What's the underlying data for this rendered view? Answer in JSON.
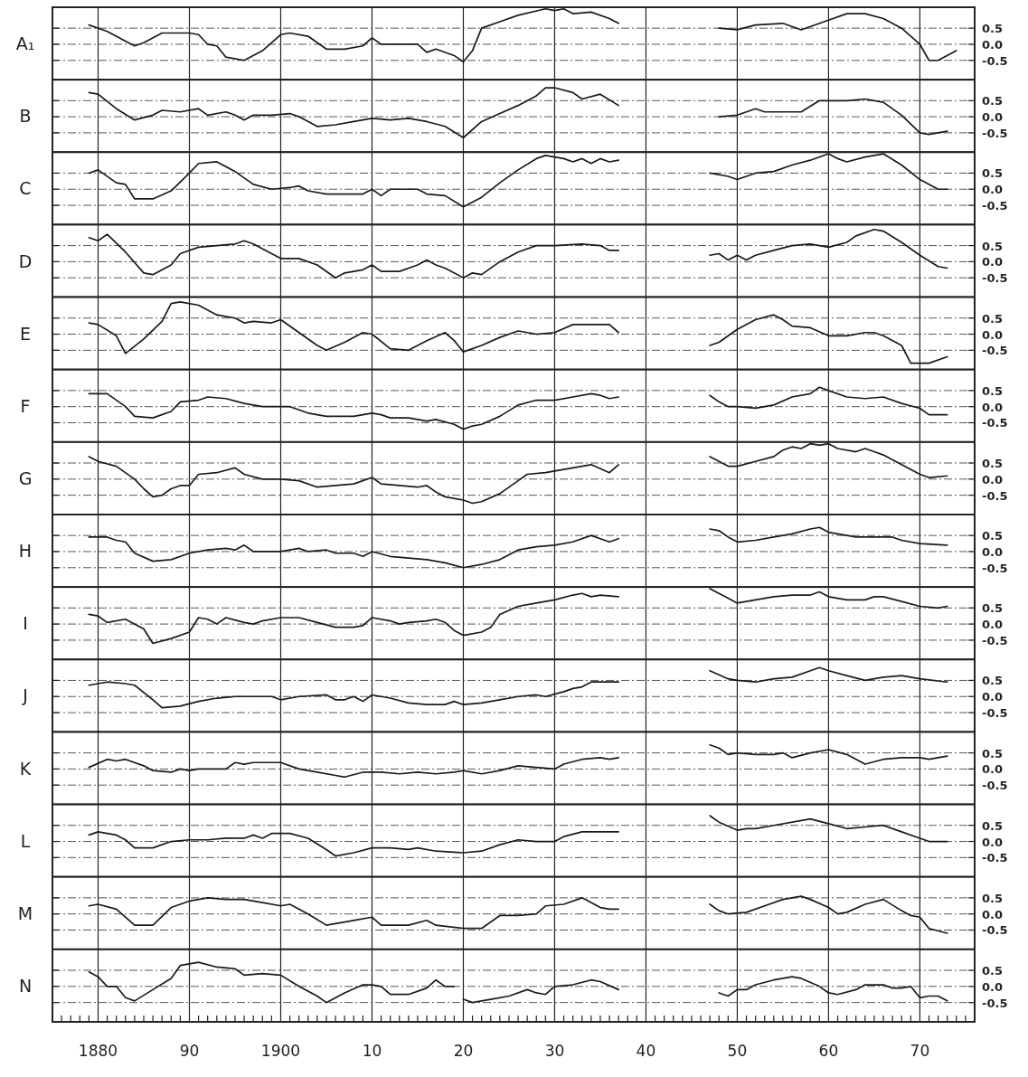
{
  "chart_data": [
    {
      "type": "line",
      "ylabel": "A₁",
      "color": "#1a1a1a",
      "xlim": [
        1875,
        1976
      ],
      "ylim": [
        -1.1,
        1.15
      ],
      "grid": true,
      "tick_labels": "y",
      "xticks": [
        1880,
        1890,
        1900,
        1910,
        1920,
        1930,
        1940,
        1950,
        1960,
        1970
      ],
      "yticks": [
        {
          "value": 0.5,
          "label": "0.5"
        },
        {
          "value": 0,
          "label": "0.0"
        },
        {
          "value": -0.5,
          "label": "-0.5"
        }
      ],
      "x": [
        1879,
        1881,
        1883,
        1884,
        1885,
        1887,
        1890,
        1891,
        1892,
        1893,
        1894,
        1896,
        1898,
        1900,
        1901,
        1903,
        1905,
        1907,
        1909,
        1910,
        1911,
        1913,
        1915,
        1916,
        1917,
        1919,
        1920,
        1921,
        1922,
        1924,
        1926,
        1929,
        1930,
        1931,
        1932,
        1934,
        1936,
        1937,
        1942,
        1948,
        1950,
        1952,
        1955,
        1957,
        1960,
        1962,
        1964,
        1966,
        1968,
        1970,
        1971,
        1972,
        1974
      ],
      "values": [
        0.6,
        0.4,
        0.1,
        -0.05,
        0.05,
        0.35,
        0.35,
        0.3,
        0,
        -0.05,
        -0.4,
        -0.5,
        -0.2,
        0.3,
        0.35,
        0.25,
        -0.15,
        -0.15,
        -0.05,
        0.2,
        0,
        0,
        0,
        -0.25,
        -0.15,
        -0.35,
        -0.55,
        -0.2,
        0.5,
        0.7,
        0.9,
        1.1,
        1.05,
        1.1,
        0.95,
        1.0,
        0.8,
        0.65,
        null,
        0.5,
        0.45,
        0.6,
        0.65,
        0.45,
        0.75,
        0.95,
        0.95,
        0.8,
        0.5,
        0,
        -0.5,
        -0.5,
        -0.2
      ]
    },
    {
      "type": "line",
      "ylabel": "B",
      "color": "#1a1a1a",
      "xlim": [
        1875,
        1976
      ],
      "ylim": [
        -1.1,
        1.15
      ],
      "grid": true,
      "tick_labels": "y",
      "xticks": [
        1880,
        1890,
        1900,
        1910,
        1920,
        1930,
        1940,
        1950,
        1960,
        1970
      ],
      "yticks": [
        {
          "value": 0.5,
          "label": "0.5"
        },
        {
          "value": 0,
          "label": "0.0"
        },
        {
          "value": -0.5,
          "label": "-0.5"
        }
      ],
      "x": [
        1879,
        1880,
        1882,
        1884,
        1886,
        1887,
        1889,
        1891,
        1892,
        1894,
        1895,
        1896,
        1897,
        1899,
        1901,
        1902,
        1904,
        1906,
        1908,
        1910,
        1912,
        1914,
        1916,
        1918,
        1920,
        1922,
        1924,
        1926,
        1928,
        1929,
        1930,
        1932,
        1933,
        1935,
        1937,
        1942,
        1948,
        1950,
        1952,
        1953,
        1957,
        1959,
        1962,
        1964,
        1966,
        1968,
        1970,
        1971,
        1973
      ],
      "values": [
        0.75,
        0.7,
        0.25,
        -0.1,
        0.05,
        0.2,
        0.15,
        0.25,
        0.05,
        0.15,
        0.05,
        -0.1,
        0.05,
        0.05,
        0.1,
        0,
        -0.3,
        -0.25,
        -0.15,
        -0.05,
        -0.1,
        -0.05,
        -0.15,
        -0.3,
        -0.65,
        -0.15,
        0.1,
        0.35,
        0.65,
        0.9,
        0.9,
        0.75,
        0.55,
        0.7,
        0.35,
        null,
        0,
        0.05,
        0.25,
        0.15,
        0.15,
        0.5,
        0.5,
        0.55,
        0.45,
        0.05,
        -0.5,
        -0.55,
        -0.45
      ]
    },
    {
      "type": "line",
      "ylabel": "C",
      "color": "#1a1a1a",
      "xlim": [
        1875,
        1976
      ],
      "ylim": [
        -1.1,
        1.15
      ],
      "grid": true,
      "tick_labels": "y",
      "xticks": [
        1880,
        1890,
        1900,
        1910,
        1920,
        1930,
        1940,
        1950,
        1960,
        1970
      ],
      "yticks": [
        {
          "value": 0.5,
          "label": "0.5"
        },
        {
          "value": 0,
          "label": "0.0"
        },
        {
          "value": -0.5,
          "label": "-0.5"
        }
      ],
      "x": [
        1879,
        1880,
        1882,
        1883,
        1884,
        1886,
        1888,
        1890,
        1891,
        1893,
        1895,
        1897,
        1899,
        1901,
        1902,
        1903,
        1905,
        1907,
        1909,
        1910,
        1911,
        1912,
        1914,
        1915,
        1916,
        1918,
        1920,
        1922,
        1924,
        1926,
        1928,
        1929,
        1931,
        1932,
        1933,
        1934,
        1935,
        1936,
        1937,
        1942,
        1947,
        1949,
        1950,
        1952,
        1954,
        1956,
        1958,
        1960,
        1961,
        1962,
        1964,
        1966,
        1968,
        1970,
        1972,
        1973
      ],
      "values": [
        0.5,
        0.6,
        0.2,
        0.15,
        -0.3,
        -0.3,
        -0.05,
        0.5,
        0.8,
        0.85,
        0.55,
        0.15,
        0,
        0.05,
        0.1,
        -0.05,
        -0.15,
        -0.15,
        -0.15,
        0,
        -0.2,
        0,
        0,
        0,
        -0.15,
        -0.2,
        -0.55,
        -0.25,
        0.2,
        0.6,
        0.95,
        1.05,
        0.95,
        0.85,
        0.95,
        0.8,
        0.95,
        0.85,
        0.9,
        null,
        0.5,
        0.4,
        0.3,
        0.5,
        0.55,
        0.75,
        0.9,
        1.1,
        0.95,
        0.85,
        1.0,
        1.1,
        0.75,
        0.3,
        0,
        0
      ]
    },
    {
      "type": "line",
      "ylabel": "D",
      "color": "#1a1a1a",
      "xlim": [
        1875,
        1976
      ],
      "ylim": [
        -1.1,
        1.15
      ],
      "grid": true,
      "tick_labels": "y",
      "xticks": [
        1880,
        1890,
        1900,
        1910,
        1920,
        1930,
        1940,
        1950,
        1960,
        1970
      ],
      "yticks": [
        {
          "value": 0.5,
          "label": "0.5"
        },
        {
          "value": 0,
          "label": "0.0"
        },
        {
          "value": -0.5,
          "label": "-0.5"
        }
      ],
      "x": [
        1879,
        1880,
        1881,
        1883,
        1885,
        1886,
        1888,
        1889,
        1891,
        1893,
        1895,
        1896,
        1897,
        1899,
        1900,
        1902,
        1904,
        1906,
        1907,
        1909,
        1910,
        1911,
        1913,
        1915,
        1916,
        1917,
        1918,
        1920,
        1921,
        1922,
        1924,
        1926,
        1928,
        1930,
        1933,
        1935,
        1936,
        1937,
        1942,
        1947,
        1948,
        1949,
        1950,
        1951,
        1952,
        1954,
        1956,
        1958,
        1960,
        1962,
        1963,
        1965,
        1966,
        1968,
        1970,
        1972,
        1973
      ],
      "values": [
        0.75,
        0.65,
        0.85,
        0.3,
        -0.35,
        -0.4,
        -0.1,
        0.25,
        0.45,
        0.5,
        0.55,
        0.65,
        0.55,
        0.25,
        0.1,
        0.1,
        -0.1,
        -0.5,
        -0.35,
        -0.25,
        -0.1,
        -0.3,
        -0.3,
        -0.1,
        0.05,
        -0.1,
        -0.2,
        -0.5,
        -0.35,
        -0.4,
        0,
        0.3,
        0.5,
        0.5,
        0.55,
        0.5,
        0.35,
        0.35,
        null,
        0.2,
        0.25,
        0.05,
        0.2,
        0.05,
        0.2,
        0.35,
        0.5,
        0.55,
        0.45,
        0.6,
        0.8,
        1.0,
        0.95,
        0.6,
        0.2,
        -0.15,
        -0.2
      ]
    },
    {
      "type": "line",
      "ylabel": "E",
      "color": "#1a1a1a",
      "xlim": [
        1875,
        1976
      ],
      "ylim": [
        -1.1,
        1.15
      ],
      "grid": true,
      "tick_labels": "y",
      "xticks": [
        1880,
        1890,
        1900,
        1910,
        1920,
        1930,
        1940,
        1950,
        1960,
        1970
      ],
      "yticks": [
        {
          "value": 0.5,
          "label": "0.5"
        },
        {
          "value": 0,
          "label": "0.0"
        },
        {
          "value": -0.5,
          "label": "-0.5"
        }
      ],
      "x": [
        1879,
        1880,
        1882,
        1883,
        1885,
        1887,
        1888,
        1889,
        1891,
        1893,
        1895,
        1896,
        1897,
        1899,
        1900,
        1902,
        1904,
        1905,
        1907,
        1909,
        1910,
        1912,
        1914,
        1916,
        1918,
        1919,
        1920,
        1922,
        1924,
        1926,
        1927,
        1928,
        1930,
        1932,
        1935,
        1936,
        1937,
        1942,
        1947,
        1948,
        1950,
        1952,
        1954,
        1955,
        1956,
        1958,
        1960,
        1962,
        1964,
        1965,
        1966,
        1968,
        1969,
        1970,
        1971,
        1973
      ],
      "values": [
        0.35,
        0.3,
        -0.05,
        -0.6,
        -0.15,
        0.4,
        0.95,
        1.0,
        0.9,
        0.6,
        0.5,
        0.35,
        0.4,
        0.35,
        0.45,
        0.05,
        -0.35,
        -0.5,
        -0.25,
        0.05,
        0,
        -0.45,
        -0.5,
        -0.2,
        0.05,
        -0.2,
        -0.55,
        -0.35,
        -0.1,
        0.1,
        0.05,
        0,
        0.05,
        0.3,
        0.3,
        0.3,
        0.05,
        null,
        -0.35,
        -0.25,
        0.15,
        0.45,
        0.6,
        0.45,
        0.25,
        0.2,
        -0.05,
        -0.05,
        0.05,
        0.05,
        -0.05,
        -0.35,
        -0.9,
        -0.9,
        -0.9,
        -0.7
      ]
    },
    {
      "type": "line",
      "ylabel": "F",
      "color": "#1a1a1a",
      "xlim": [
        1875,
        1976
      ],
      "ylim": [
        -1.1,
        1.15
      ],
      "grid": true,
      "tick_labels": "y",
      "xticks": [
        1880,
        1890,
        1900,
        1910,
        1920,
        1930,
        1940,
        1950,
        1960,
        1970
      ],
      "yticks": [
        {
          "value": 0.5,
          "label": "0.5"
        },
        {
          "value": 0,
          "label": "0.0"
        },
        {
          "value": -0.5,
          "label": "-0.5"
        }
      ],
      "x": [
        1879,
        1881,
        1883,
        1884,
        1886,
        1888,
        1889,
        1891,
        1892,
        1894,
        1896,
        1898,
        1901,
        1903,
        1905,
        1908,
        1910,
        1911,
        1912,
        1914,
        1916,
        1917,
        1919,
        1920,
        1921,
        1922,
        1924,
        1926,
        1928,
        1930,
        1932,
        1934,
        1935,
        1936,
        1937,
        1942,
        1947,
        1948,
        1949,
        1950,
        1952,
        1954,
        1956,
        1958,
        1959,
        1960,
        1962,
        1964,
        1966,
        1968,
        1970,
        1971,
        1973
      ],
      "values": [
        0.4,
        0.4,
        0,
        -0.3,
        -0.35,
        -0.15,
        0.15,
        0.2,
        0.3,
        0.25,
        0.1,
        0,
        0,
        -0.2,
        -0.3,
        -0.3,
        -0.2,
        -0.25,
        -0.35,
        -0.35,
        -0.45,
        -0.4,
        -0.55,
        -0.7,
        -0.6,
        -0.55,
        -0.3,
        0.05,
        0.2,
        0.2,
        0.3,
        0.4,
        0.35,
        0.25,
        0.3,
        null,
        0.35,
        0.15,
        0,
        0,
        -0.05,
        0.05,
        0.3,
        0.4,
        0.6,
        0.5,
        0.3,
        0.25,
        0.3,
        0.1,
        -0.05,
        -0.25,
        -0.25
      ]
    },
    {
      "type": "line",
      "ylabel": "G",
      "color": "#1a1a1a",
      "xlim": [
        1875,
        1976
      ],
      "ylim": [
        -1.1,
        1.15
      ],
      "grid": true,
      "tick_labels": "y",
      "xticks": [
        1880,
        1890,
        1900,
        1910,
        1920,
        1930,
        1940,
        1950,
        1960,
        1970
      ],
      "yticks": [
        {
          "value": 0.5,
          "label": "0.5"
        },
        {
          "value": 0,
          "label": "0.0"
        },
        {
          "value": -0.5,
          "label": "-0.5"
        }
      ],
      "x": [
        1879,
        1880,
        1882,
        1884,
        1885,
        1886,
        1887,
        1888,
        1889,
        1890,
        1891,
        1893,
        1895,
        1896,
        1898,
        1900,
        1902,
        1904,
        1906,
        1908,
        1910,
        1911,
        1913,
        1915,
        1916,
        1917,
        1918,
        1920,
        1921,
        1922,
        1924,
        1926,
        1927,
        1929,
        1931,
        1933,
        1934,
        1936,
        1937,
        1942,
        1947,
        1949,
        1950,
        1952,
        1954,
        1955,
        1956,
        1957,
        1958,
        1959,
        1960,
        1961,
        1963,
        1964,
        1965,
        1966,
        1968,
        1970,
        1971,
        1973
      ],
      "values": [
        0.7,
        0.55,
        0.4,
        0,
        -0.3,
        -0.55,
        -0.5,
        -0.3,
        -0.2,
        -0.2,
        0.15,
        0.2,
        0.35,
        0.15,
        0,
        0,
        -0.05,
        -0.25,
        -0.2,
        -0.15,
        0.05,
        -0.15,
        -0.2,
        -0.25,
        -0.2,
        -0.4,
        -0.55,
        -0.65,
        -0.75,
        -0.7,
        -0.45,
        -0.05,
        0.15,
        0.2,
        0.3,
        0.4,
        0.45,
        0.2,
        0.45,
        null,
        0.7,
        0.4,
        0.4,
        0.55,
        0.7,
        0.9,
        1.0,
        0.95,
        1.1,
        1.05,
        1.1,
        0.95,
        0.85,
        0.95,
        0.85,
        0.75,
        0.45,
        0.15,
        0.05,
        0.1
      ]
    },
    {
      "type": "line",
      "ylabel": "H",
      "color": "#1a1a1a",
      "xlim": [
        1875,
        1976
      ],
      "ylim": [
        -1.1,
        1.15
      ],
      "grid": true,
      "tick_labels": "y",
      "xticks": [
        1880,
        1890,
        1900,
        1910,
        1920,
        1930,
        1940,
        1950,
        1960,
        1970
      ],
      "yticks": [
        {
          "value": 0.5,
          "label": "0.5"
        },
        {
          "value": 0,
          "label": "0.0"
        },
        {
          "value": -0.5,
          "label": "-0.5"
        }
      ],
      "x": [
        1879,
        1881,
        1882,
        1883,
        1884,
        1886,
        1888,
        1890,
        1892,
        1894,
        1895,
        1896,
        1897,
        1900,
        1902,
        1903,
        1905,
        1906,
        1908,
        1909,
        1910,
        1912,
        1914,
        1916,
        1918,
        1920,
        1922,
        1924,
        1926,
        1928,
        1930,
        1932,
        1934,
        1935,
        1936,
        1937,
        1942,
        1947,
        1948,
        1949,
        1950,
        1952,
        1954,
        1956,
        1958,
        1959,
        1960,
        1962,
        1963,
        1965,
        1967,
        1968,
        1970,
        1973
      ],
      "values": [
        0.45,
        0.45,
        0.35,
        0.3,
        -0.05,
        -0.3,
        -0.25,
        -0.05,
        0.05,
        0.1,
        0.05,
        0.2,
        0,
        0,
        0.1,
        0,
        0.05,
        -0.05,
        -0.05,
        -0.15,
        0,
        -0.15,
        -0.2,
        -0.25,
        -0.35,
        -0.5,
        -0.4,
        -0.25,
        0.05,
        0.15,
        0.2,
        0.3,
        0.5,
        0.4,
        0.3,
        0.4,
        null,
        0.7,
        0.65,
        0.45,
        0.3,
        0.35,
        0.45,
        0.55,
        0.7,
        0.75,
        0.6,
        0.5,
        0.45,
        0.45,
        0.45,
        0.35,
        0.25,
        0.2
      ]
    },
    {
      "type": "line",
      "ylabel": "I",
      "color": "#1a1a1a",
      "xlim": [
        1875,
        1976
      ],
      "ylim": [
        -1.1,
        1.15
      ],
      "grid": true,
      "tick_labels": "y",
      "xticks": [
        1880,
        1890,
        1900,
        1910,
        1920,
        1930,
        1940,
        1950,
        1960,
        1970
      ],
      "yticks": [
        {
          "value": 0.5,
          "label": "0.5"
        },
        {
          "value": 0,
          "label": "0.0"
        },
        {
          "value": -0.5,
          "label": "-0.5"
        }
      ],
      "x": [
        1879,
        1880,
        1881,
        1883,
        1885,
        1886,
        1888,
        1890,
        1891,
        1892,
        1893,
        1894,
        1896,
        1897,
        1898,
        1900,
        1902,
        1904,
        1906,
        1908,
        1909,
        1910,
        1912,
        1913,
        1914,
        1916,
        1917,
        1918,
        1919,
        1920,
        1922,
        1923,
        1924,
        1926,
        1928,
        1930,
        1932,
        1933,
        1934,
        1935,
        1937,
        1942,
        1947,
        1948,
        1949,
        1950,
        1952,
        1954,
        1956,
        1958,
        1959,
        1960,
        1962,
        1964,
        1965,
        1966,
        1968,
        1970,
        1972,
        1973
      ],
      "values": [
        0.3,
        0.25,
        0.05,
        0.15,
        -0.15,
        -0.6,
        -0.45,
        -0.25,
        0.2,
        0.15,
        0,
        0.2,
        0.05,
        0,
        0.1,
        0.2,
        0.2,
        0.05,
        -0.1,
        -0.1,
        -0.05,
        0.2,
        0.1,
        0,
        0.05,
        0.1,
        0.15,
        0.05,
        -0.2,
        -0.35,
        -0.25,
        -0.1,
        0.3,
        0.55,
        0.65,
        0.75,
        0.9,
        0.95,
        0.85,
        0.9,
        0.85,
        null,
        1.1,
        0.95,
        0.8,
        0.65,
        0.75,
        0.85,
        0.9,
        0.9,
        1.0,
        0.85,
        0.75,
        0.75,
        0.85,
        0.85,
        0.7,
        0.55,
        0.5,
        0.55
      ]
    },
    {
      "type": "line",
      "ylabel": "J",
      "color": "#1a1a1a",
      "xlim": [
        1875,
        1976
      ],
      "ylim": [
        -1.1,
        1.15
      ],
      "grid": true,
      "tick_labels": "y",
      "xticks": [
        1880,
        1890,
        1900,
        1910,
        1920,
        1930,
        1940,
        1950,
        1960,
        1970
      ],
      "yticks": [
        {
          "value": 0.5,
          "label": "0.5"
        },
        {
          "value": 0,
          "label": "0.0"
        },
        {
          "value": -0.5,
          "label": "-0.5"
        }
      ],
      "x": [
        1879,
        1880,
        1881,
        1883,
        1884,
        1886,
        1887,
        1889,
        1891,
        1893,
        1895,
        1897,
        1899,
        1900,
        1902,
        1905,
        1906,
        1907,
        1908,
        1909,
        1910,
        1912,
        1914,
        1916,
        1918,
        1919,
        1920,
        1922,
        1924,
        1926,
        1928,
        1929,
        1931,
        1932,
        1933,
        1934,
        1937,
        1942,
        1947,
        1949,
        1950,
        1952,
        1954,
        1956,
        1958,
        1959,
        1960,
        1962,
        1964,
        1966,
        1968,
        1970,
        1973
      ],
      "values": [
        0.35,
        0.4,
        0.45,
        0.4,
        0.35,
        -0.1,
        -0.35,
        -0.3,
        -0.15,
        -0.05,
        0,
        0,
        0,
        -0.1,
        0,
        0.05,
        -0.1,
        -0.1,
        0,
        -0.15,
        0.05,
        -0.05,
        -0.2,
        -0.25,
        -0.25,
        -0.15,
        -0.25,
        -0.2,
        -0.1,
        0,
        0.05,
        0,
        0.15,
        0.25,
        0.3,
        0.45,
        0.45,
        null,
        0.8,
        0.55,
        0.5,
        0.45,
        0.55,
        0.6,
        0.8,
        0.9,
        0.8,
        0.65,
        0.5,
        0.6,
        0.65,
        0.55,
        0.45
      ]
    },
    {
      "type": "line",
      "ylabel": "K",
      "color": "#1a1a1a",
      "xlim": [
        1875,
        1976
      ],
      "ylim": [
        -1.1,
        1.15
      ],
      "grid": true,
      "tick_labels": "y",
      "xticks": [
        1880,
        1890,
        1900,
        1910,
        1920,
        1930,
        1940,
        1950,
        1960,
        1970
      ],
      "yticks": [
        {
          "value": 0.5,
          "label": "0.5"
        },
        {
          "value": 0,
          "label": "0.0"
        },
        {
          "value": -0.5,
          "label": "-0.5"
        }
      ],
      "x": [
        1879,
        1881,
        1882,
        1883,
        1885,
        1886,
        1888,
        1889,
        1890,
        1891,
        1894,
        1895,
        1896,
        1897,
        1899,
        1900,
        1902,
        1904,
        1906,
        1907,
        1909,
        1911,
        1913,
        1915,
        1917,
        1919,
        1920,
        1922,
        1924,
        1926,
        1928,
        1930,
        1931,
        1933,
        1935,
        1936,
        1937,
        1942,
        1947,
        1948,
        1949,
        1950,
        1952,
        1954,
        1955,
        1956,
        1958,
        1960,
        1962,
        1964,
        1966,
        1968,
        1970,
        1971,
        1973
      ],
      "values": [
        0.05,
        0.3,
        0.25,
        0.3,
        0.1,
        -0.05,
        -0.1,
        0,
        -0.05,
        0,
        0,
        0.2,
        0.15,
        0.2,
        0.2,
        0.2,
        0,
        -0.1,
        -0.2,
        -0.25,
        -0.1,
        -0.1,
        -0.15,
        -0.1,
        -0.15,
        -0.1,
        -0.05,
        -0.15,
        -0.05,
        0.1,
        0.05,
        0,
        0.15,
        0.3,
        0.35,
        0.3,
        0.35,
        null,
        0.75,
        0.65,
        0.45,
        0.5,
        0.45,
        0.45,
        0.5,
        0.35,
        0.5,
        0.6,
        0.45,
        0.15,
        0.3,
        0.35,
        0.35,
        0.3,
        0.4
      ]
    },
    {
      "type": "line",
      "ylabel": "L",
      "color": "#1a1a1a",
      "xlim": [
        1875,
        1976
      ],
      "ylim": [
        -1.1,
        1.15
      ],
      "grid": true,
      "tick_labels": "y",
      "xticks": [
        1880,
        1890,
        1900,
        1910,
        1920,
        1930,
        1940,
        1950,
        1960,
        1970
      ],
      "yticks": [
        {
          "value": 0.5,
          "label": "0.5"
        },
        {
          "value": 0,
          "label": "0.0"
        },
        {
          "value": -0.5,
          "label": "-0.5"
        }
      ],
      "x": [
        1879,
        1880,
        1882,
        1883,
        1884,
        1886,
        1888,
        1890,
        1892,
        1894,
        1896,
        1897,
        1898,
        1899,
        1901,
        1903,
        1905,
        1906,
        1908,
        1910,
        1912,
        1914,
        1915,
        1917,
        1920,
        1922,
        1924,
        1926,
        1928,
        1930,
        1931,
        1933,
        1937,
        1942,
        1947,
        1948,
        1950,
        1951,
        1952,
        1954,
        1958,
        1960,
        1962,
        1964,
        1966,
        1968,
        1970,
        1971,
        1973
      ],
      "values": [
        0.2,
        0.3,
        0.2,
        0.05,
        -0.2,
        -0.2,
        0,
        0.05,
        0.05,
        0.1,
        0.1,
        0.2,
        0.1,
        0.25,
        0.25,
        0.1,
        -0.25,
        -0.45,
        -0.35,
        -0.2,
        -0.2,
        -0.25,
        -0.2,
        -0.3,
        -0.35,
        -0.3,
        -0.1,
        0.05,
        0,
        0,
        0.15,
        0.3,
        0.3,
        null,
        0.8,
        0.6,
        0.35,
        0.4,
        0.4,
        0.5,
        0.7,
        0.55,
        0.4,
        0.45,
        0.5,
        0.3,
        0.1,
        0,
        0
      ]
    },
    {
      "type": "line",
      "ylabel": "M",
      "color": "#1a1a1a",
      "xlim": [
        1875,
        1976
      ],
      "ylim": [
        -1.1,
        1.15
      ],
      "grid": true,
      "tick_labels": "y",
      "xticks": [
        1880,
        1890,
        1900,
        1910,
        1920,
        1930,
        1940,
        1950,
        1960,
        1970
      ],
      "yticks": [
        {
          "value": 0.5,
          "label": "0.5"
        },
        {
          "value": 0,
          "label": "0.0"
        },
        {
          "value": -0.5,
          "label": "-0.5"
        }
      ],
      "x": [
        1879,
        1880,
        1882,
        1884,
        1886,
        1888,
        1890,
        1892,
        1894,
        1896,
        1898,
        1900,
        1901,
        1903,
        1905,
        1907,
        1910,
        1911,
        1914,
        1916,
        1917,
        1920,
        1922,
        1924,
        1926,
        1928,
        1929,
        1931,
        1933,
        1935,
        1936,
        1937,
        1942,
        1947,
        1948,
        1949,
        1951,
        1953,
        1955,
        1957,
        1958,
        1960,
        1961,
        1962,
        1964,
        1966,
        1968,
        1969,
        1970,
        1971,
        1973
      ],
      "values": [
        0.25,
        0.3,
        0.15,
        -0.35,
        -0.35,
        0.2,
        0.4,
        0.5,
        0.45,
        0.45,
        0.35,
        0.25,
        0.3,
        0,
        -0.35,
        -0.25,
        -0.1,
        -0.35,
        -0.35,
        -0.2,
        -0.35,
        -0.45,
        -0.45,
        -0.05,
        -0.05,
        0,
        0.25,
        0.3,
        0.5,
        0.2,
        0.15,
        0.15,
        null,
        0.3,
        0.1,
        0,
        0.05,
        0.25,
        0.45,
        0.55,
        0.45,
        0.2,
        0,
        0.05,
        0.3,
        0.45,
        0.1,
        -0.05,
        -0.1,
        -0.45,
        -0.6
      ]
    },
    {
      "type": "line",
      "ylabel": "N",
      "color": "#1a1a1a",
      "xlim": [
        1875,
        1976
      ],
      "ylim": [
        -1.1,
        1.15
      ],
      "grid": true,
      "xticks": [
        {
          "value": 1876,
          "label": null
        },
        {
          "value": 1877,
          "label": null
        },
        {
          "value": 1878,
          "label": null
        },
        {
          "value": 1879,
          "label": null
        },
        {
          "value": 1880,
          "label": "1880"
        },
        {
          "value": 1881,
          "label": null
        },
        {
          "value": 1882,
          "label": null
        },
        {
          "value": 1883,
          "label": null
        },
        {
          "value": 1884,
          "label": null
        },
        {
          "value": 1885,
          "label": null
        },
        {
          "value": 1886,
          "label": null
        },
        {
          "value": 1887,
          "label": null
        },
        {
          "value": 1888,
          "label": null
        },
        {
          "value": 1889,
          "label": null
        },
        {
          "value": 1890,
          "label": "90"
        },
        {
          "value": 1891,
          "label": null
        },
        {
          "value": 1892,
          "label": null
        },
        {
          "value": 1893,
          "label": null
        },
        {
          "value": 1894,
          "label": null
        },
        {
          "value": 1895,
          "label": null
        },
        {
          "value": 1896,
          "label": null
        },
        {
          "value": 1897,
          "label": null
        },
        {
          "value": 1898,
          "label": null
        },
        {
          "value": 1899,
          "label": null
        },
        {
          "value": 1900,
          "label": "1900"
        },
        {
          "value": 1901,
          "label": null
        },
        {
          "value": 1902,
          "label": null
        },
        {
          "value": 1903,
          "label": null
        },
        {
          "value": 1904,
          "label": null
        },
        {
          "value": 1905,
          "label": null
        },
        {
          "value": 1906,
          "label": null
        },
        {
          "value": 1907,
          "label": null
        },
        {
          "value": 1908,
          "label": null
        },
        {
          "value": 1909,
          "label": null
        },
        {
          "value": 1910,
          "label": "10"
        },
        {
          "value": 1911,
          "label": null
        },
        {
          "value": 1912,
          "label": null
        },
        {
          "value": 1913,
          "label": null
        },
        {
          "value": 1914,
          "label": null
        },
        {
          "value": 1915,
          "label": null
        },
        {
          "value": 1916,
          "label": null
        },
        {
          "value": 1917,
          "label": null
        },
        {
          "value": 1918,
          "label": null
        },
        {
          "value": 1919,
          "label": null
        },
        {
          "value": 1920,
          "label": "20"
        },
        {
          "value": 1921,
          "label": null
        },
        {
          "value": 1922,
          "label": null
        },
        {
          "value": 1923,
          "label": null
        },
        {
          "value": 1924,
          "label": null
        },
        {
          "value": 1925,
          "label": null
        },
        {
          "value": 1926,
          "label": null
        },
        {
          "value": 1927,
          "label": null
        },
        {
          "value": 1928,
          "label": null
        },
        {
          "value": 1929,
          "label": null
        },
        {
          "value": 1930,
          "label": "30"
        },
        {
          "value": 1931,
          "label": null
        },
        {
          "value": 1932,
          "label": null
        },
        {
          "value": 1933,
          "label": null
        },
        {
          "value": 1934,
          "label": null
        },
        {
          "value": 1935,
          "label": null
        },
        {
          "value": 1936,
          "label": null
        },
        {
          "value": 1937,
          "label": null
        },
        {
          "value": 1938,
          "label": null
        },
        {
          "value": 1939,
          "label": null
        },
        {
          "value": 1940,
          "label": "40"
        },
        {
          "value": 1941,
          "label": null
        },
        {
          "value": 1942,
          "label": null
        },
        {
          "value": 1943,
          "label": null
        },
        {
          "value": 1944,
          "label": null
        },
        {
          "value": 1945,
          "label": null
        },
        {
          "value": 1946,
          "label": null
        },
        {
          "value": 1947,
          "label": null
        },
        {
          "value": 1948,
          "label": null
        },
        {
          "value": 1949,
          "label": null
        },
        {
          "value": 1950,
          "label": "50"
        },
        {
          "value": 1951,
          "label": null
        },
        {
          "value": 1952,
          "label": null
        },
        {
          "value": 1953,
          "label": null
        },
        {
          "value": 1954,
          "label": null
        },
        {
          "value": 1955,
          "label": null
        },
        {
          "value": 1956,
          "label": null
        },
        {
          "value": 1957,
          "label": null
        },
        {
          "value": 1958,
          "label": null
        },
        {
          "value": 1959,
          "label": null
        },
        {
          "value": 1960,
          "label": "60"
        },
        {
          "value": 1961,
          "label": null
        },
        {
          "value": 1962,
          "label": null
        },
        {
          "value": 1963,
          "label": null
        },
        {
          "value": 1964,
          "label": null
        },
        {
          "value": 1965,
          "label": null
        },
        {
          "value": 1966,
          "label": null
        },
        {
          "value": 1967,
          "label": null
        },
        {
          "value": 1968,
          "label": null
        },
        {
          "value": 1969,
          "label": null
        },
        {
          "value": 1970,
          "label": "70"
        },
        {
          "value": 1971,
          "label": null
        },
        {
          "value": 1972,
          "label": null
        },
        {
          "value": 1973,
          "label": null
        },
        {
          "value": 1974,
          "label": null
        },
        {
          "value": 1975,
          "label": null
        }
      ],
      "yticks": [
        {
          "value": 0.5,
          "label": "0.5"
        },
        {
          "value": 0,
          "label": "0.0"
        },
        {
          "value": -0.5,
          "label": "-0.5"
        }
      ],
      "x": [
        1879,
        1880,
        1881,
        1882,
        1883,
        1884,
        1886,
        1888,
        1889,
        1891,
        1893,
        1895,
        1896,
        1898,
        1900,
        1902,
        1904,
        1905,
        1907,
        1909,
        1910,
        1911,
        1912,
        1914,
        1916,
        1917,
        1918,
        1919,
        1919.5,
        1920,
        1921,
        1923,
        1925,
        1927,
        1928,
        1929,
        1930,
        1932,
        1934,
        1935,
        1937,
        1942,
        1948,
        1949,
        1950,
        1951,
        1952,
        1954,
        1956,
        1957,
        1959,
        1960,
        1961,
        1963,
        1964,
        1966,
        1967,
        1968,
        1969,
        1970,
        1971,
        1972,
        1973
      ],
      "values": [
        0.45,
        0.3,
        0,
        0,
        -0.35,
        -0.45,
        -0.1,
        0.25,
        0.65,
        0.75,
        0.6,
        0.55,
        0.35,
        0.4,
        0.35,
        0,
        -0.3,
        -0.5,
        -0.2,
        0.05,
        0.05,
        0,
        -0.25,
        -0.25,
        -0.05,
        0.2,
        0,
        0,
        null,
        -0.4,
        -0.5,
        -0.4,
        -0.3,
        -0.1,
        -0.2,
        -0.25,
        0,
        0.05,
        0.2,
        0.15,
        -0.1,
        null,
        -0.2,
        -0.3,
        -0.1,
        -0.1,
        0.05,
        0.2,
        0.3,
        0.25,
        0,
        -0.2,
        -0.25,
        -0.1,
        0.05,
        0.05,
        -0.05,
        -0.05,
        0,
        -0.35,
        -0.3,
        -0.3,
        -0.45
      ]
    }
  ]
}
